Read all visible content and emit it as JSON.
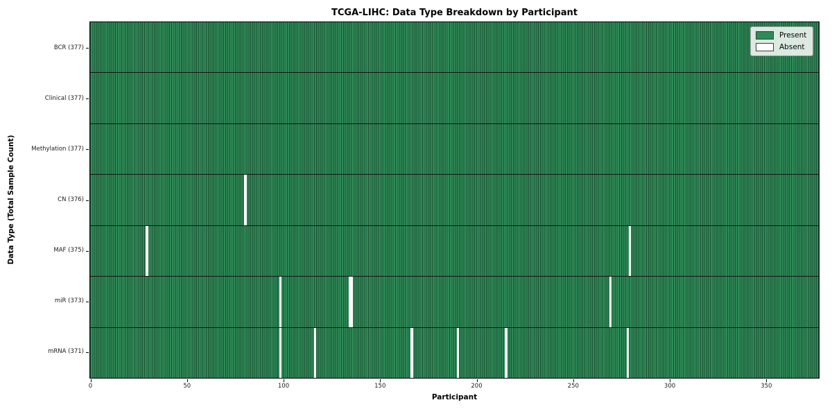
{
  "chart_data": {
    "type": "heatmap",
    "title": "TCGA-LIHC: Data Type Breakdown by Participant",
    "xlabel": "Participant",
    "ylabel": "Data Type (Total Sample Count)",
    "n_participants": 377,
    "x_axis_range": [
      0,
      377
    ],
    "x_ticks": [
      0,
      50,
      100,
      150,
      200,
      250,
      300,
      350
    ],
    "grid": false,
    "legend_position": "upper right",
    "legend": [
      {
        "label": "Present",
        "color": "#2e8b57"
      },
      {
        "label": "Absent",
        "color": "#ffffff"
      }
    ],
    "colors": {
      "present": "#2e8b57",
      "bar_edge": "#1d5034",
      "absent": "#ffffff",
      "row_separator": "#141414"
    },
    "rows": [
      {
        "label": "BCR (377)",
        "data_type": "BCR",
        "total": 377,
        "absent_participants": []
      },
      {
        "label": "Clinical (377)",
        "data_type": "Clinical",
        "total": 377,
        "absent_participants": []
      },
      {
        "label": "Methylation (377)",
        "data_type": "Methylation",
        "total": 377,
        "absent_participants": []
      },
      {
        "label": "CN (376)",
        "data_type": "CN",
        "total": 376,
        "absent_participants": [
          80
        ]
      },
      {
        "label": "MAF (375)",
        "data_type": "MAF",
        "total": 375,
        "absent_participants": [
          29,
          279
        ]
      },
      {
        "label": "miR (373)",
        "data_type": "miR",
        "total": 373,
        "absent_participants": [
          98,
          134,
          135,
          269
        ]
      },
      {
        "label": "mRNA (371)",
        "data_type": "mRNA",
        "total": 371,
        "absent_participants": [
          98,
          116,
          166,
          190,
          215,
          278
        ]
      }
    ]
  }
}
